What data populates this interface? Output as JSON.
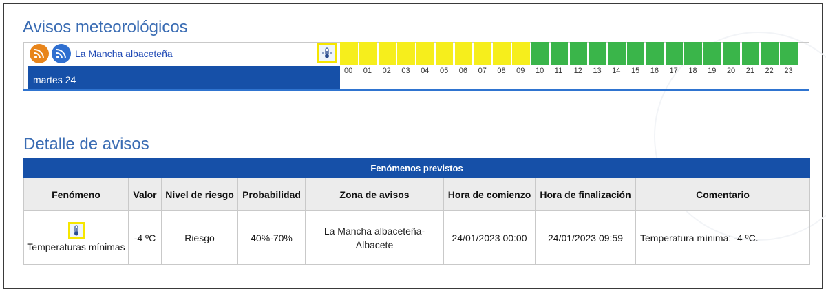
{
  "title_avisos": "Avisos meteorológicos",
  "zone": {
    "name": "La Mancha albaceteña",
    "day": "martes 24"
  },
  "timeline": {
    "hours": [
      "00",
      "01",
      "02",
      "03",
      "04",
      "05",
      "06",
      "07",
      "08",
      "09",
      "10",
      "11",
      "12",
      "13",
      "14",
      "15",
      "16",
      "17",
      "18",
      "19",
      "20",
      "21",
      "22",
      "23"
    ],
    "levels": [
      "yellow",
      "yellow",
      "yellow",
      "yellow",
      "yellow",
      "yellow",
      "yellow",
      "yellow",
      "yellow",
      "yellow",
      "green",
      "green",
      "green",
      "green",
      "green",
      "green",
      "green",
      "green",
      "green",
      "green",
      "green",
      "green",
      "green",
      "green"
    ],
    "colors": {
      "yellow": "#f6ee1c",
      "green": "#3ab54a"
    }
  },
  "title_detalle": "Detalle de avisos",
  "table": {
    "caption": "Fenómenos previstos",
    "headers": [
      "Fenómeno",
      "Valor",
      "Nivel de riesgo",
      "Probabilidad",
      "Zona de avisos",
      "Hora de comienzo",
      "Hora de finalización",
      "Comentario"
    ],
    "row": {
      "fenomeno": "Temperaturas mínimas",
      "valor": "-4 ºC",
      "nivel": "Riesgo",
      "probabilidad": "40%-70%",
      "zona": "La Mancha albaceteña-Albacete",
      "comienzo": "24/01/2023 00:00",
      "fin": "24/01/2023 09:59",
      "comentario": "Temperatura mínima: -4 ºC."
    }
  },
  "icons": {
    "rss": "rss-feed-icon",
    "thermometer": "thermometer-icon"
  }
}
